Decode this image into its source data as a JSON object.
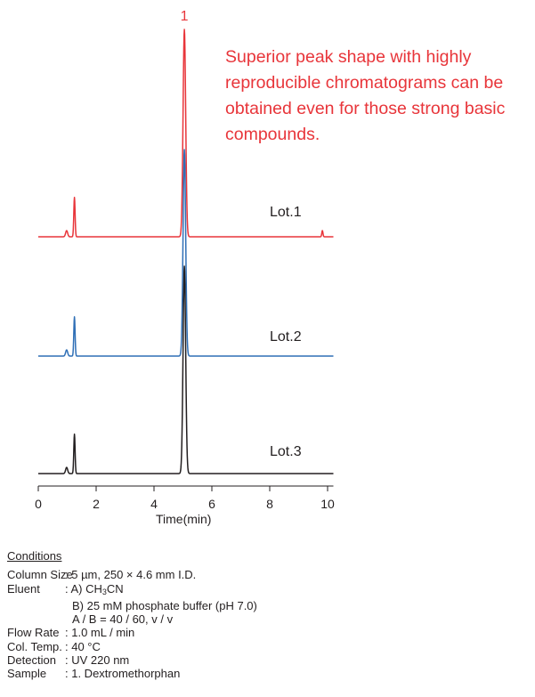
{
  "chart_data": {
    "type": "line",
    "title": "",
    "xlabel": "Time(min)",
    "ylabel": "",
    "xlim": [
      0,
      10.2
    ],
    "xticks": [
      0,
      2,
      4,
      6,
      8,
      10
    ],
    "xtick_labels": [
      "0",
      "2",
      "4",
      "6",
      "8",
      "10"
    ],
    "grid": false,
    "peak_label": "1",
    "annotation_lines": [
      "Superior peak shape with highly",
      "reproducible chromatograms can  be",
      "obtained even for those strong basic",
      "compounds."
    ],
    "series": [
      {
        "name": "Lot.1",
        "color": "#e8353a",
        "peaks": [
          {
            "t": 0.98,
            "h": 0.03,
            "w": 0.035
          },
          {
            "t": 1.25,
            "h": 0.19,
            "w": 0.022
          },
          {
            "t": 5.05,
            "h": 1.0,
            "w": 0.045
          }
        ],
        "tail": {
          "t": 9.82,
          "h": 0.03,
          "w": 0.02
        }
      },
      {
        "name": "Lot.2",
        "color": "#2f6fb6",
        "peaks": [
          {
            "t": 0.98,
            "h": 0.03,
            "w": 0.035
          },
          {
            "t": 1.25,
            "h": 0.19,
            "w": 0.022
          },
          {
            "t": 5.05,
            "h": 1.0,
            "w": 0.045
          }
        ],
        "tail": {
          "t": 9.82,
          "h": 0.0,
          "w": 0.02
        }
      },
      {
        "name": "Lot.3",
        "color": "#231f20",
        "peaks": [
          {
            "t": 0.98,
            "h": 0.03,
            "w": 0.035
          },
          {
            "t": 1.25,
            "h": 0.19,
            "w": 0.022
          },
          {
            "t": 5.05,
            "h": 1.0,
            "w": 0.045
          }
        ],
        "tail": {
          "t": 9.82,
          "h": 0.0,
          "w": 0.02
        }
      }
    ]
  },
  "conditions": {
    "heading": "Conditions",
    "column_size_label": "Column Size",
    "column_size_value": ": 5 µm, 250 × 4.6 mm I.D.",
    "eluent_label": "Eluent",
    "eluent_a_prefix": ": A) CH",
    "eluent_a_sub": "3",
    "eluent_a_suffix": "CN",
    "eluent_b": "B) 25 mM phosphate buffer (pH 7.0)",
    "eluent_ratio": "A / B = 40 / 60, v / v",
    "flow_rate_label": "Flow Rate",
    "flow_rate_value": ": 1.0 mL / min",
    "col_temp_label": "Col. Temp.",
    "col_temp_value": ": 40 °C",
    "detection_label": "Detection",
    "detection_value": ": UV 220 nm",
    "sample_label": "Sample",
    "sample_value": ": 1. Dextromethorphan"
  }
}
